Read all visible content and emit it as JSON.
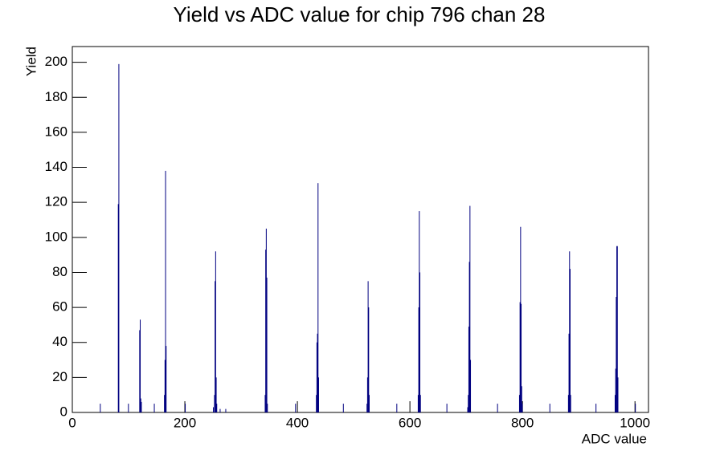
{
  "chart_data": {
    "type": "histogram",
    "title": "Yield vs ADC value for chip 796 chan 28",
    "x_label": "ADC value",
    "y_label": "Yield",
    "color": "#000080",
    "x": [
      49,
      81,
      82,
      99,
      119,
      120,
      121,
      122,
      145,
      163,
      164,
      165,
      166,
      200,
      250,
      252,
      253,
      254,
      255,
      256,
      262,
      272,
      342,
      343,
      344,
      345,
      346,
      396,
      433,
      434,
      435,
      436,
      437,
      481,
      523,
      524,
      525,
      526,
      527,
      576,
      614,
      615,
      616,
      617,
      618,
      665,
      702,
      703,
      704,
      705,
      706,
      707,
      755,
      794,
      795,
      796,
      797,
      798,
      799,
      848,
      881,
      882,
      883,
      884,
      885,
      930,
      964,
      965,
      966,
      967,
      968,
      969,
      1000
    ],
    "values": [
      5,
      119,
      199,
      5,
      47,
      53,
      8,
      6,
      5,
      10,
      30,
      138,
      38,
      5,
      3,
      10,
      75,
      92,
      20,
      5,
      2,
      2,
      10,
      93,
      105,
      77,
      5,
      5,
      10,
      40,
      45,
      131,
      20,
      5,
      5,
      20,
      75,
      60,
      10,
      5,
      10,
      60,
      115,
      80,
      10,
      5,
      3,
      10,
      49,
      86,
      118,
      30,
      5,
      10,
      63,
      106,
      62,
      15,
      5,
      5,
      10,
      45,
      92,
      82,
      10,
      5,
      10,
      25,
      66,
      95,
      95,
      20,
      5
    ],
    "xlim": [
      0,
      1024
    ],
    "ylim": [
      0,
      209
    ],
    "xticks": [
      0,
      200,
      400,
      600,
      800,
      1000
    ],
    "yticks": [
      0,
      20,
      40,
      60,
      80,
      100,
      120,
      140,
      160,
      180,
      200
    ]
  }
}
